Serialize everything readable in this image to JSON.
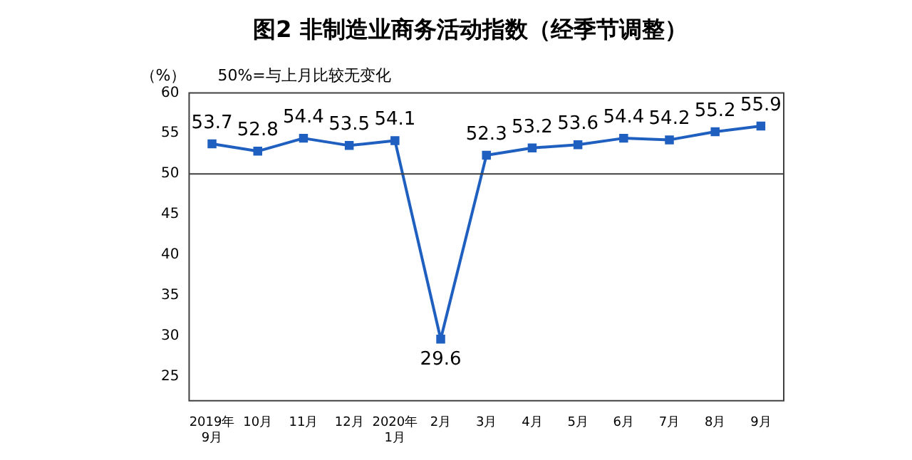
{
  "chart_data": {
    "type": "line",
    "title": "图2 非制造业商务活动指数（经季节调整）",
    "ylabel": "（%）",
    "annotations": [
      "50%=与上月比较无变化"
    ],
    "categories": [
      "2019年\n9月",
      "10月",
      "11月",
      "12月",
      "2020年\n1月",
      "2月",
      "3月",
      "4月",
      "5月",
      "6月",
      "7月",
      "8月",
      "9月"
    ],
    "series": [
      {
        "color": "#1f5fbf",
        "values": [
          53.7,
          52.8,
          54.4,
          53.5,
          54.1,
          29.6,
          52.3,
          53.2,
          53.6,
          54.4,
          54.2,
          55.2,
          55.9
        ]
      }
    ],
    "ylim": [
      22,
      60
    ],
    "yticks": [
      25,
      30,
      35,
      40,
      45,
      50,
      55,
      60
    ],
    "ref_lines": [
      {
        "axis": "y",
        "value": 50,
        "color": "#404040"
      }
    ],
    "data_labels": true,
    "marker": "square",
    "line_style": "solid",
    "grid": false,
    "legend": false
  }
}
